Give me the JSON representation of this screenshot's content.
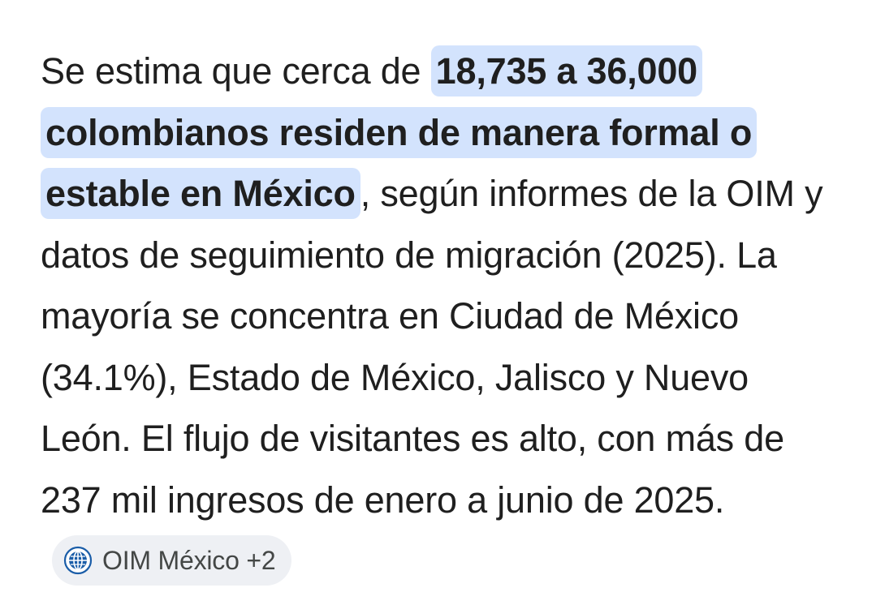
{
  "answer": {
    "lead": "Se estima que cerca de ",
    "highlight": "18,735 a 36,000 colombianos residen de manera formal o estable en México",
    "rest": ", según informes de la OIM y datos de seguimiento de migración (2025). La mayoría se concentra en Ciudad de México (34.1%), Estado de México, Jalisco y Nuevo León. El flujo de visitantes es alto, con más de 237 mil ingresos de enero a junio de 2025."
  },
  "source_chip": {
    "icon": "globe-icon",
    "label": "OIM México +2",
    "accent_color": "#1a5da8"
  }
}
